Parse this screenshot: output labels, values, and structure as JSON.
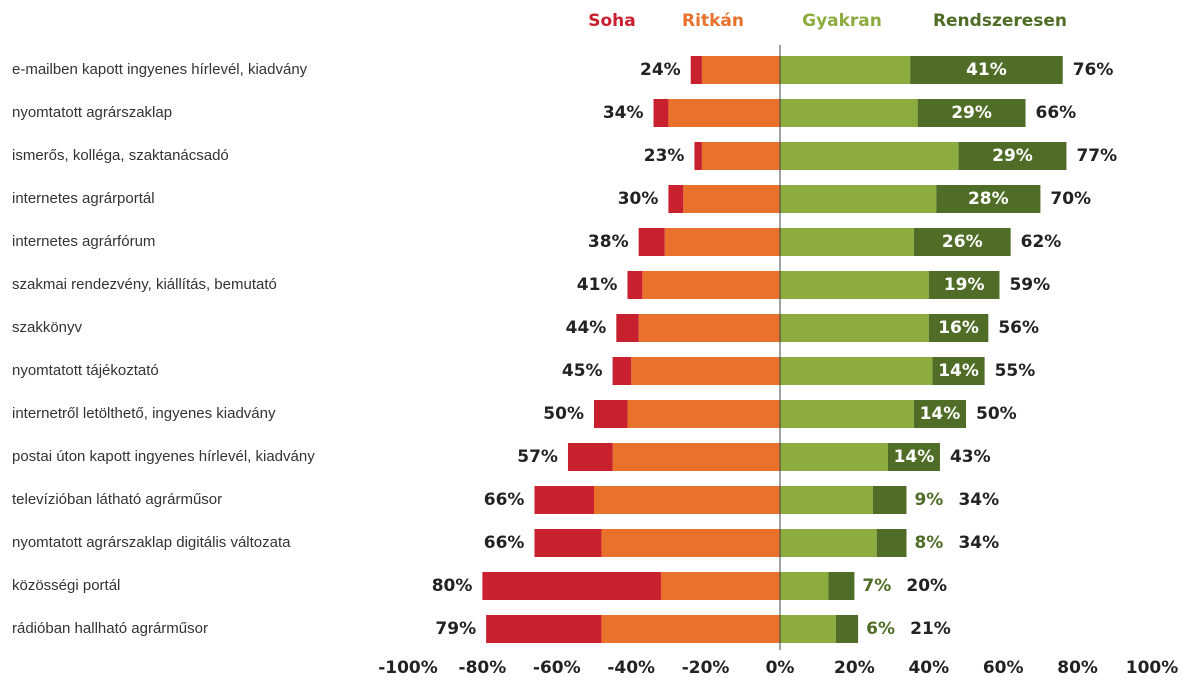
{
  "chart_data": {
    "type": "diverging_bar",
    "categories": [
      "e-mailben kapott ingyenes hírlevél, kiadvány",
      "nyomtatott agrárszaklap",
      "ismerős, kolléga, szaktanácsadó",
      "internetes agrárportál",
      "internetes agrárfórum",
      "szakmai rendezvény, kiállítás, bemutató",
      "szakkönyv",
      "nyomtatott tájékoztató",
      "internetről letölthető, ingyenes kiadvány",
      "postai úton kapott ingyenes hírlevél, kiadvány",
      "televízióban látható agrárműsor",
      "nyomtatott agrárszaklap digitális változata",
      "közösségi portál",
      "rádióban hallható agrárműsor"
    ],
    "series": [
      {
        "name": "Soha",
        "color": "#c8202f",
        "side": "left",
        "values": [
          3,
          4,
          2,
          4,
          7,
          4,
          6,
          5,
          9,
          12,
          16,
          18,
          48,
          31
        ]
      },
      {
        "name": "Ritkán",
        "color": "#e8712b",
        "side": "left",
        "values": [
          21,
          30,
          21,
          26,
          31,
          37,
          38,
          40,
          41,
          45,
          50,
          48,
          32,
          48
        ]
      },
      {
        "name": "Gyakran",
        "color": "#8cac3f",
        "side": "right",
        "values": [
          35,
          37,
          48,
          42,
          36,
          40,
          40,
          41,
          36,
          29,
          25,
          26,
          13,
          15
        ]
      },
      {
        "name": "Rendszeresen",
        "color": "#4f6d26",
        "side": "right",
        "values": [
          41,
          29,
          29,
          28,
          26,
          19,
          16,
          14,
          14,
          14,
          9,
          8,
          7,
          6
        ],
        "value_labels": [
          "41%",
          "29%",
          "29%",
          "28%",
          "26%",
          "19%",
          "16%",
          "14%",
          "14%",
          "14%",
          "9%",
          "8%",
          "7%",
          "6%"
        ]
      }
    ],
    "left_totals": {
      "values": [
        24,
        34,
        23,
        30,
        38,
        41,
        44,
        45,
        50,
        57,
        66,
        66,
        80,
        79
      ],
      "value_labels": [
        "24%",
        "34%",
        "23%",
        "30%",
        "38%",
        "41%",
        "44%",
        "45%",
        "50%",
        "57%",
        "66%",
        "66%",
        "80%",
        "79%"
      ]
    },
    "right_totals": {
      "values": [
        76,
        66,
        77,
        70,
        62,
        59,
        56,
        55,
        50,
        43,
        34,
        34,
        20,
        21
      ],
      "value_labels": [
        "76%",
        "66%",
        "77%",
        "70%",
        "62%",
        "59%",
        "56%",
        "55%",
        "50%",
        "43%",
        "34%",
        "34%",
        "20%",
        "21%"
      ]
    },
    "xlim": [
      -100,
      100
    ],
    "xticks": [
      {
        "value": -100,
        "label": "-100%"
      },
      {
        "value": -80,
        "label": "-80%"
      },
      {
        "value": -60,
        "label": "-60%"
      },
      {
        "value": -40,
        "label": "-40%"
      },
      {
        "value": -20,
        "label": "-20%"
      },
      {
        "value": 0,
        "label": "0%"
      },
      {
        "value": 20,
        "label": "20%"
      },
      {
        "value": 40,
        "label": "40%"
      },
      {
        "value": 60,
        "label": "60%"
      },
      {
        "value": 80,
        "label": "80%"
      },
      {
        "value": 100,
        "label": "100%"
      }
    ]
  }
}
